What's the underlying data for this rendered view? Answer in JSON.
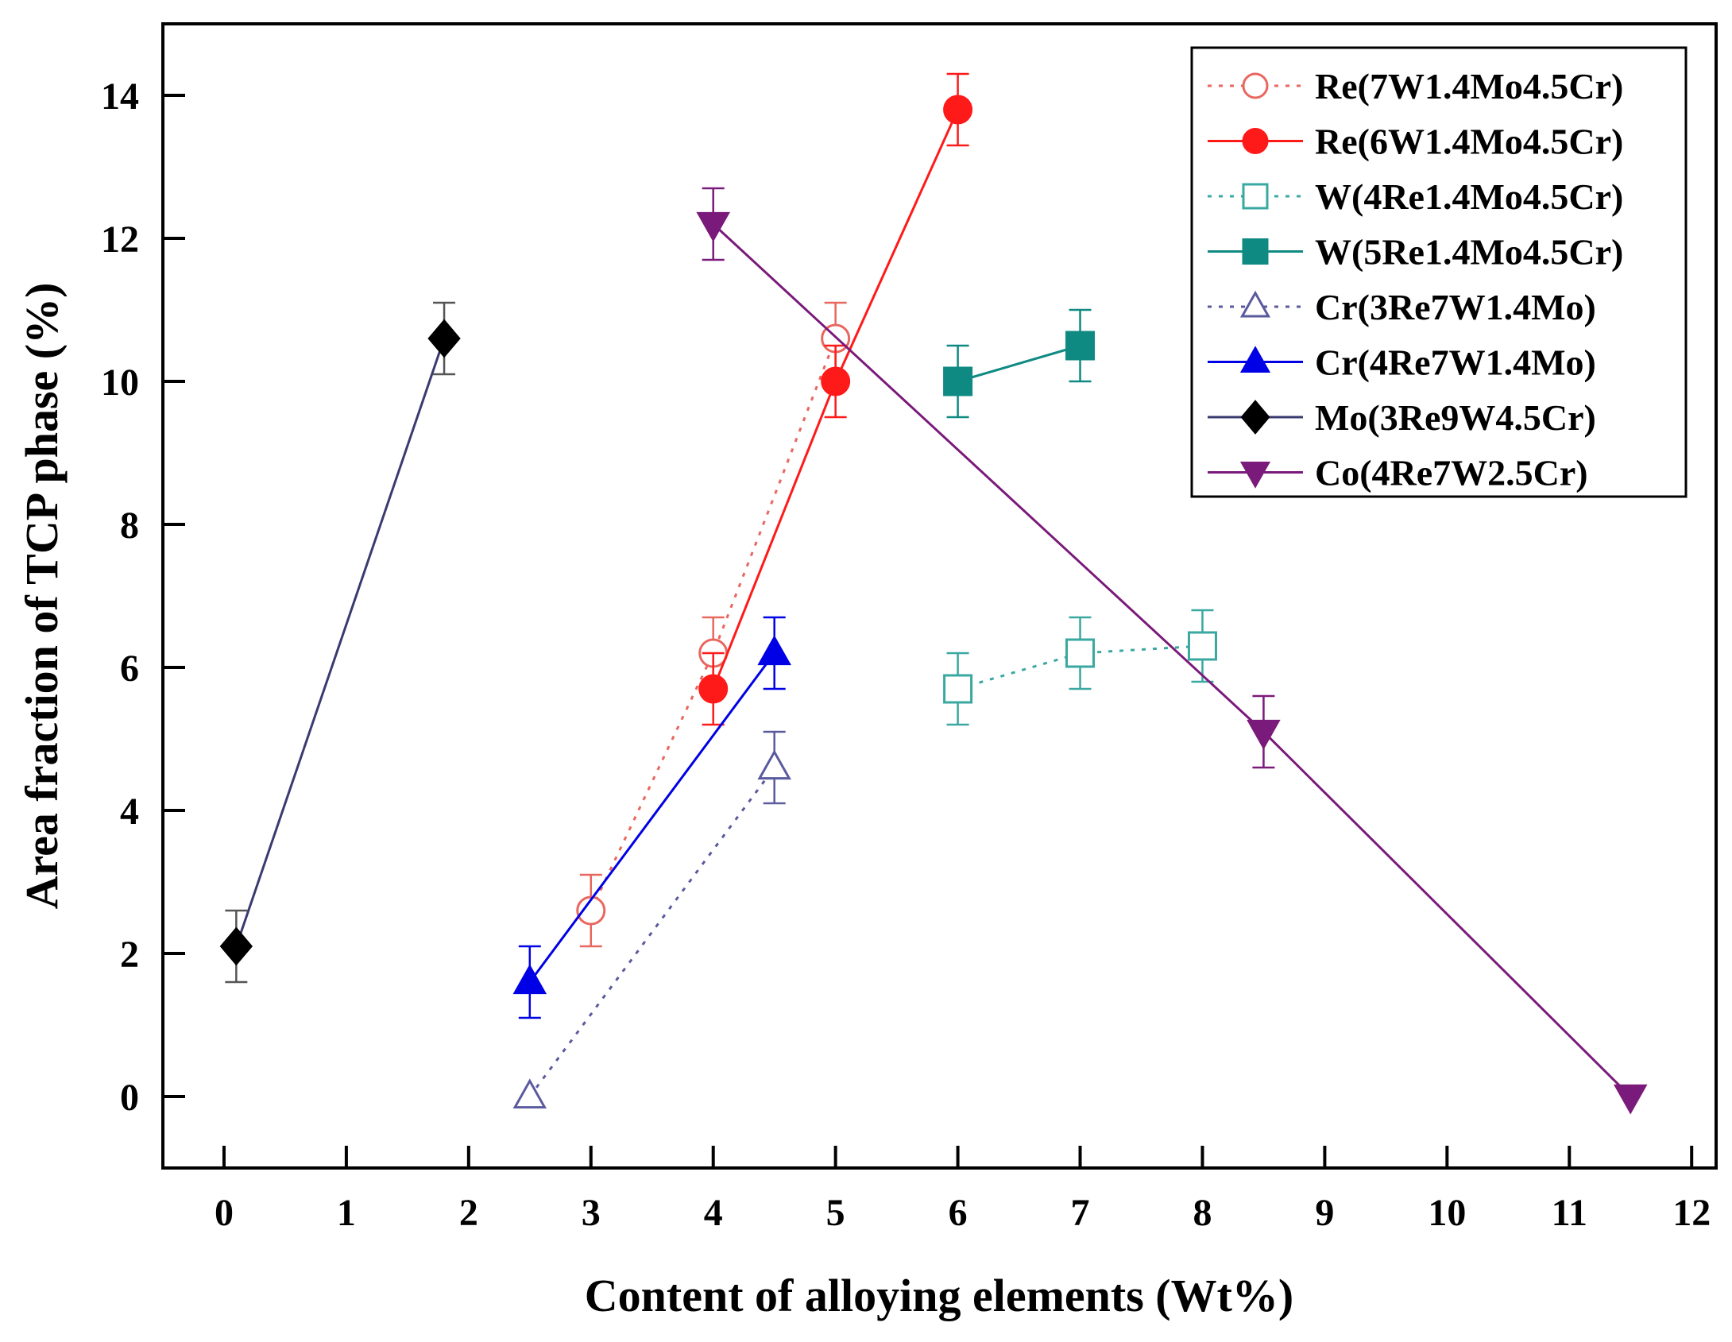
{
  "chart_data": {
    "type": "line",
    "title": "",
    "xlabel": "Content of alloying elements (Wt%)",
    "ylabel": "Area fraction of TCP phase (%)",
    "xlim": [
      -0.5,
      12.2
    ],
    "ylim": [
      -1.0,
      15.0
    ],
    "xticks": [
      0,
      1,
      2,
      3,
      4,
      5,
      6,
      7,
      8,
      9,
      10,
      11,
      12
    ],
    "yticks": [
      0,
      2,
      4,
      6,
      8,
      10,
      12,
      14
    ],
    "legend_position": "top-right",
    "series": [
      {
        "name": "Re(7W1.4Mo4.5Cr)",
        "color": "#e8675f",
        "marker": "circle",
        "filled": false,
        "dashed": true,
        "x": [
          3,
          4,
          5
        ],
        "y": [
          2.6,
          6.2,
          10.6
        ],
        "err": [
          0.5,
          0.5,
          0.5
        ]
      },
      {
        "name": "Re(6W1.4Mo4.5Cr)",
        "color": "#ff1a1a",
        "marker": "circle",
        "filled": true,
        "dashed": false,
        "x": [
          4,
          5,
          6
        ],
        "y": [
          5.7,
          10.0,
          13.8
        ],
        "err": [
          0.5,
          0.5,
          0.5
        ]
      },
      {
        "name": "W(4Re1.4Mo4.5Cr)",
        "color": "#3aa8a0",
        "marker": "square",
        "filled": false,
        "dashed": true,
        "x": [
          6,
          7,
          8
        ],
        "y": [
          5.7,
          6.2,
          6.3
        ],
        "err": [
          0.5,
          0.5,
          0.5
        ]
      },
      {
        "name": "W(5Re1.4Mo4.5Cr)",
        "color": "#0f8a83",
        "marker": "square",
        "filled": true,
        "dashed": false,
        "x": [
          6,
          7
        ],
        "y": [
          10.0,
          10.5
        ],
        "err": [
          0.5,
          0.5
        ]
      },
      {
        "name": "Cr(3Re7W1.4Mo)",
        "color": "#5a5a9e",
        "marker": "triangle-up",
        "filled": false,
        "dashed": true,
        "x": [
          2.5,
          4.5
        ],
        "y": [
          0.0,
          4.6
        ],
        "err": [
          null,
          0.5
        ]
      },
      {
        "name": "Cr(4Re7W1.4Mo)",
        "color": "#0000e6",
        "marker": "triangle-up",
        "filled": true,
        "dashed": false,
        "x": [
          2.5,
          4.5
        ],
        "y": [
          1.6,
          6.2
        ],
        "err": [
          0.5,
          0.5
        ]
      },
      {
        "name": "Mo(3Re9W4.5Cr)",
        "color": "#000000",
        "line_color": "#3a3a70",
        "marker": "diamond",
        "filled": true,
        "dashed": false,
        "x": [
          0.1,
          1.8
        ],
        "y": [
          2.1,
          10.6
        ],
        "err": [
          0.5,
          0.5
        ]
      },
      {
        "name": "Co(4Re7W2.5Cr)",
        "color": "#7a1a7a",
        "marker": "triangle-down",
        "filled": true,
        "dashed": false,
        "x": [
          4.0,
          8.5,
          11.5
        ],
        "y": [
          12.2,
          5.1,
          0.0
        ],
        "err": [
          0.5,
          0.5,
          null
        ]
      }
    ]
  }
}
